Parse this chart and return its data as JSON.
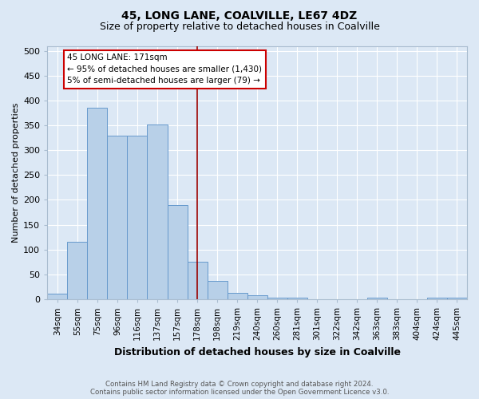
{
  "title": "45, LONG LANE, COALVILLE, LE67 4DZ",
  "subtitle": "Size of property relative to detached houses in Coalville",
  "xlabel": "Distribution of detached houses by size in Coalville",
  "ylabel": "Number of detached properties",
  "categories": [
    "34sqm",
    "55sqm",
    "75sqm",
    "96sqm",
    "116sqm",
    "137sqm",
    "157sqm",
    "178sqm",
    "198sqm",
    "219sqm",
    "240sqm",
    "260sqm",
    "281sqm",
    "301sqm",
    "322sqm",
    "342sqm",
    "363sqm",
    "383sqm",
    "404sqm",
    "424sqm",
    "445sqm"
  ],
  "values": [
    12,
    116,
    385,
    330,
    330,
    352,
    190,
    75,
    37,
    13,
    8,
    3,
    3,
    0,
    0,
    0,
    4,
    0,
    0,
    3,
    4
  ],
  "bar_color": "#b8d0e8",
  "bar_edge_color": "#6699cc",
  "vline_x_index": 7,
  "vline_color": "#990000",
  "annotation_line1": "45 LONG LANE: 171sqm",
  "annotation_line2": "← 95% of detached houses are smaller (1,430)",
  "annotation_line3": "5% of semi-detached houses are larger (79) →",
  "annotation_box_facecolor": "#ffffff",
  "annotation_box_edgecolor": "#cc0000",
  "bg_color": "#dce8f5",
  "grid_color": "#ffffff",
  "yticks": [
    0,
    50,
    100,
    150,
    200,
    250,
    300,
    350,
    400,
    450,
    500
  ],
  "ylim": [
    0,
    510
  ],
  "footer_line1": "Contains HM Land Registry data © Crown copyright and database right 2024.",
  "footer_line2": "Contains public sector information licensed under the Open Government Licence v3.0.",
  "title_fontsize": 10,
  "subtitle_fontsize": 9,
  "xlabel_fontsize": 9,
  "ylabel_fontsize": 8,
  "tick_fontsize": 7.5,
  "ytick_fontsize": 8
}
